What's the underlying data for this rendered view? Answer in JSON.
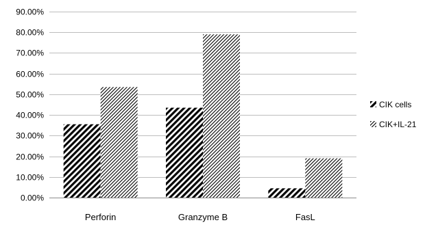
{
  "chart_data": {
    "type": "bar",
    "title": "",
    "xlabel": "",
    "ylabel": "",
    "categories": [
      "Perforin",
      "Granzyme B",
      "FasL"
    ],
    "series": [
      {
        "name": "CIK cells",
        "values": [
          35.5,
          43.5,
          4.5
        ],
        "pattern": "dense-diagonal-hatch",
        "color": "#000000"
      },
      {
        "name": "CIK+IL-21",
        "values": [
          53.5,
          79.0,
          19.0
        ],
        "pattern": "fine-diagonal-hatch",
        "color": "#000000"
      }
    ],
    "ylim": [
      0,
      90
    ],
    "yticks": [
      0,
      10,
      20,
      30,
      40,
      50,
      60,
      70,
      80,
      90
    ],
    "ytick_labels": [
      "0.00%",
      "10.00%",
      "20.00%",
      "30.00%",
      "40.00%",
      "50.00%",
      "60.00%",
      "70.00%",
      "80.00%",
      "90.00%"
    ],
    "grid": "horizontal",
    "legend": "right"
  }
}
